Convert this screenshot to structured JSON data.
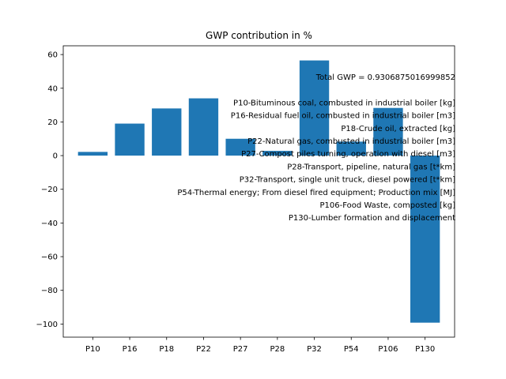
{
  "chart_data": {
    "type": "bar",
    "title": "GWP contribution in %",
    "xlabel": "",
    "ylabel": "",
    "categories": [
      "P10",
      "P16",
      "P18",
      "P22",
      "P27",
      "P28",
      "P32",
      "P54",
      "P106",
      "P130"
    ],
    "values": [
      2.2,
      19.0,
      28.0,
      34.0,
      10.0,
      2.8,
      56.5,
      8.3,
      28.3,
      -99.2
    ],
    "ylim": [
      -107.8,
      65.2
    ],
    "yticks": [
      60,
      40,
      20,
      0,
      -20,
      -40,
      -60,
      -80,
      -100
    ],
    "ytick_labels": [
      "60",
      "40",
      "20",
      "0",
      "−20",
      "−40",
      "−60",
      "−80",
      "−100"
    ],
    "bar_color": "#1f77b4",
    "grid": false,
    "annotations": [
      "Total GWP = 0.9306875016999852",
      "",
      "P10-Bituminous coal, combusted in industrial boiler [kg]",
      "P16-Residual fuel oil, combusted in industrial boiler [m3]",
      "P18-Crude oil, extracted [kg]",
      "P22-Natural gas, combusted in industrial boiler [m3]",
      "P27-Compost piles turning, operation with diesel [m3]",
      "P28-Transport, pipeline, natural gas [t*km]",
      "P32-Transport, single unit truck, diesel powered [t*km]",
      "P54-Thermal energy; From diesel fired equipment; Production mix [MJ]",
      "P106-Food Waste, composted [kg]",
      "P130-Lumber formation and displacement"
    ]
  }
}
